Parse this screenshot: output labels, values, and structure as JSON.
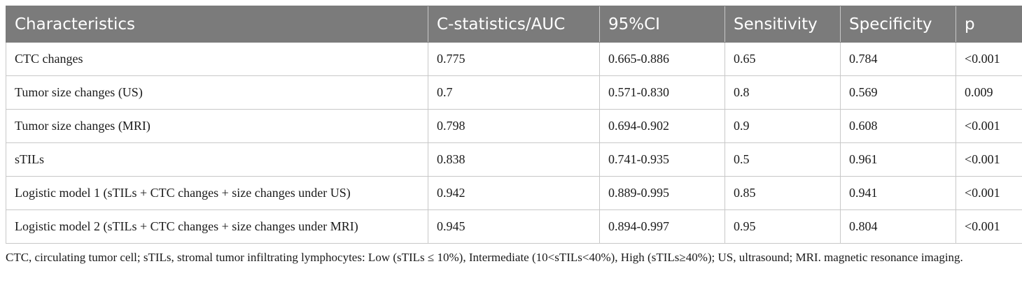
{
  "table": {
    "headers": [
      "Characteristics",
      "C-statistics/AUC",
      "95%CI",
      "Sensitivity",
      "Specificity",
      "p"
    ],
    "rows": [
      [
        "CTC changes",
        "0.775",
        "0.665-0.886",
        "0.65",
        "0.784",
        "<0.001"
      ],
      [
        "Tumor size changes (US)",
        "0.7",
        "0.571-0.830",
        "0.8",
        "0.569",
        "0.009"
      ],
      [
        "Tumor size changes (MRI)",
        "0.798",
        "0.694-0.902",
        "0.9",
        "0.608",
        "<0.001"
      ],
      [
        "sTILs",
        "0.838",
        "0.741-0.935",
        "0.5",
        "0.961",
        "<0.001"
      ],
      [
        "Logistic model 1 (sTILs + CTC changes + size changes under US)",
        "0.942",
        "0.889-0.995",
        "0.85",
        "0.941",
        "<0.001"
      ],
      [
        "Logistic model 2 (sTILs + CTC changes + size changes under MRI)",
        "0.945",
        "0.894-0.997",
        "0.95",
        "0.804",
        "<0.001"
      ]
    ]
  },
  "footnote": "CTC, circulating tumor cell; sTILs, stromal tumor infiltrating lymphocytes: Low (sTILs ≤ 10%), Intermediate (10<sTILs<40%), High (sTILs≥40%); US, ultrasound; MRI. magnetic resonance imaging.",
  "colors": {
    "header_bg": "#7b7b7b",
    "header_text": "#ffffff",
    "grid": "#c8c8c8",
    "body_text": "#1a1a1a"
  }
}
